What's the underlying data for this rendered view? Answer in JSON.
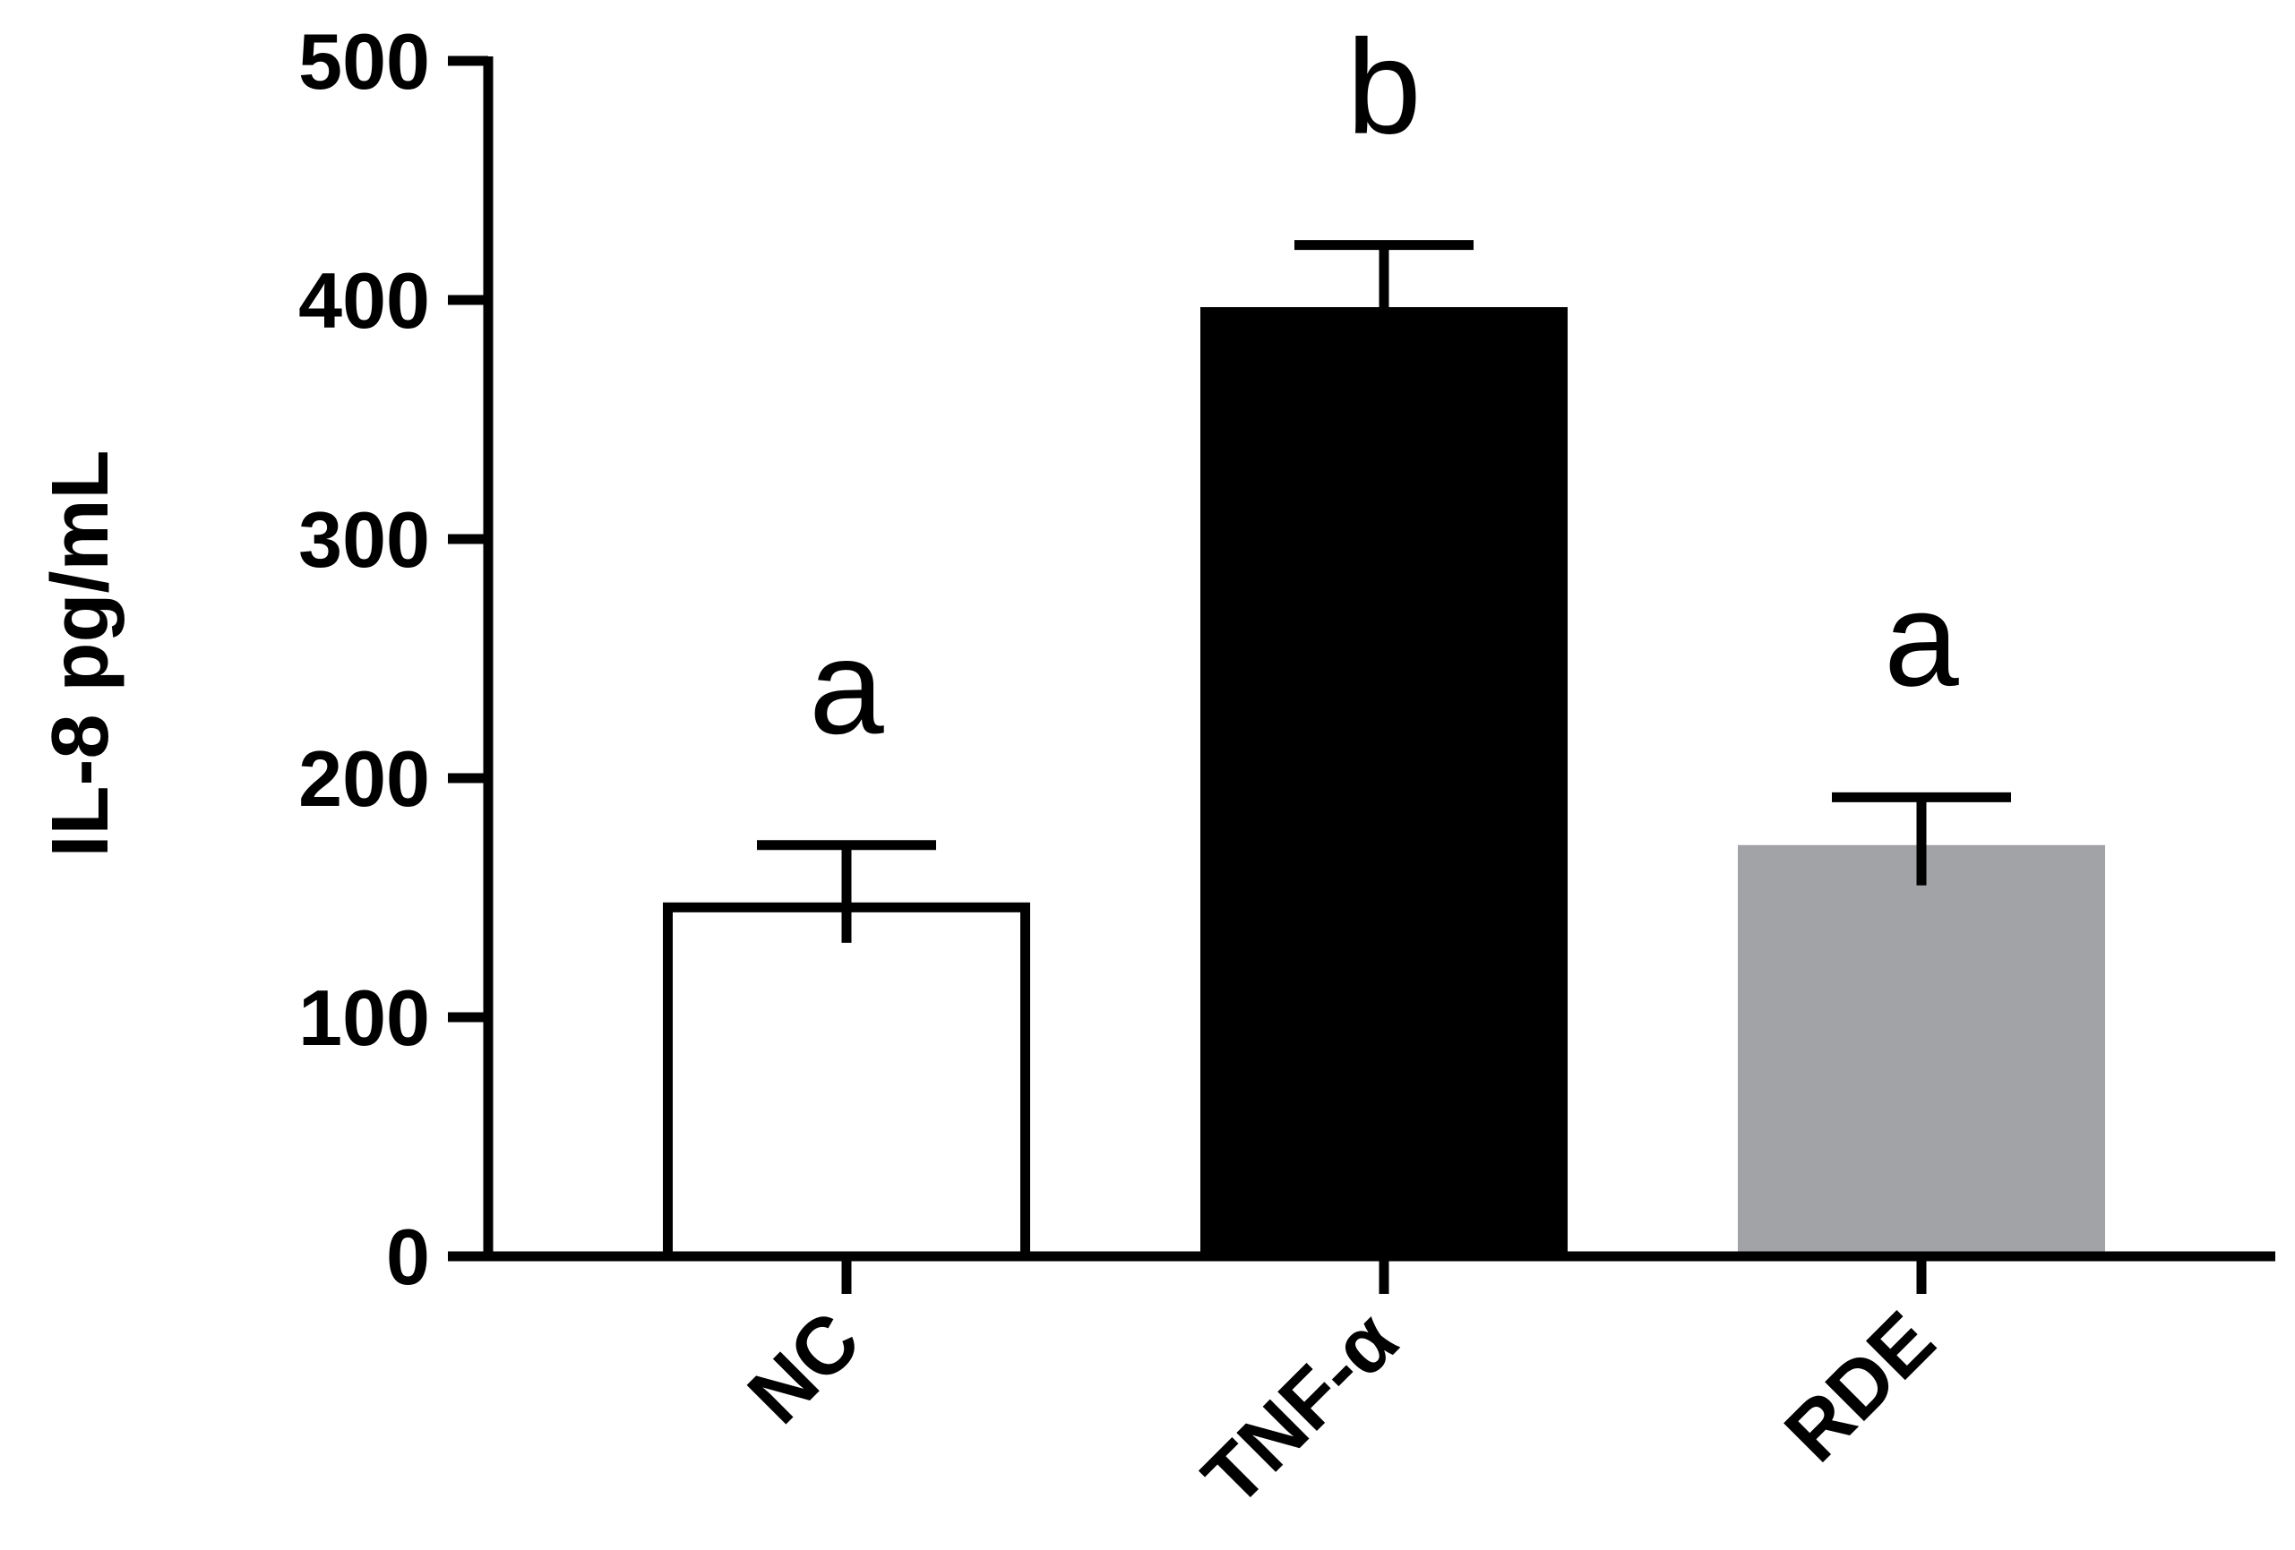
{
  "chart_data": {
    "type": "bar",
    "categories": [
      "NC",
      "TNF-α",
      "RDE"
    ],
    "values": [
      148,
      397,
      172
    ],
    "errors": [
      24,
      26,
      20
    ],
    "significance_letters": [
      "a",
      "b",
      "a"
    ],
    "bar_fill_colors": [
      "#ffffff",
      "#000000",
      "#a2a3a6"
    ],
    "bar_edge_colors": [
      "#000000",
      "#000000",
      "#a2a3a6"
    ],
    "ylabel": "IL-8 pg/mL",
    "xlabel": "",
    "title": "",
    "ylim": [
      0,
      500
    ],
    "yticks": [
      "0",
      "100",
      "200",
      "300",
      "400",
      "500"
    ],
    "grid": false,
    "legend": "none"
  }
}
